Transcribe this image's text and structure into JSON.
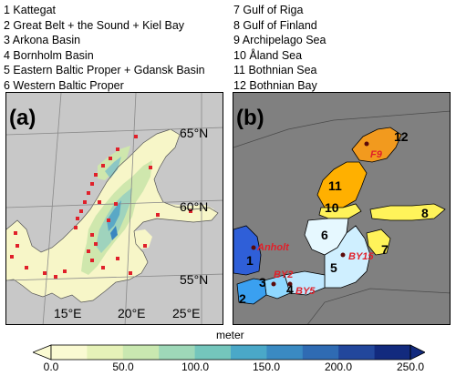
{
  "legend_left": [
    "1 Kattegat",
    "2 Great Belt + the Sound + Kiel Bay",
    "3 Arkona Basin",
    "4 Bornholm Basin",
    "5 Eastern Baltic Proper + Gdansk Basin",
    "6 Western Baltic Proper"
  ],
  "legend_right": [
    "7 Gulf of Riga",
    "8 Gulf of Finland",
    "9 Archipelago Sea",
    "10 Åland Sea",
    "11 Bothnian Sea",
    "12 Bothnian Bay"
  ],
  "panel_a": {
    "label": "(a)",
    "lat_labels": [
      "65°N",
      "60°N",
      "55°N"
    ],
    "lon_labels": [
      "15°E",
      "20°E",
      "25°E"
    ]
  },
  "panel_b": {
    "label": "(b)",
    "regions": [
      "1",
      "2",
      "3",
      "4",
      "5",
      "6",
      "7",
      "8",
      "10",
      "11",
      "12"
    ],
    "stations": [
      "Anholt",
      "BY2",
      "BY5",
      "BY15",
      "F9"
    ]
  },
  "colorbar": {
    "title": "meter",
    "ticks": [
      "0.0",
      "50.0",
      "100.0",
      "150.0",
      "200.0",
      "250.0"
    ],
    "colors": [
      "#fafad2",
      "#e6f2b8",
      "#c9e8b0",
      "#9ed8b8",
      "#74c6bc",
      "#4aa8c8",
      "#3a8ac2",
      "#2f6bb3",
      "#22479c",
      "#122a7e"
    ],
    "under_color": "#fafad2",
    "over_color": "#122a7e"
  }
}
